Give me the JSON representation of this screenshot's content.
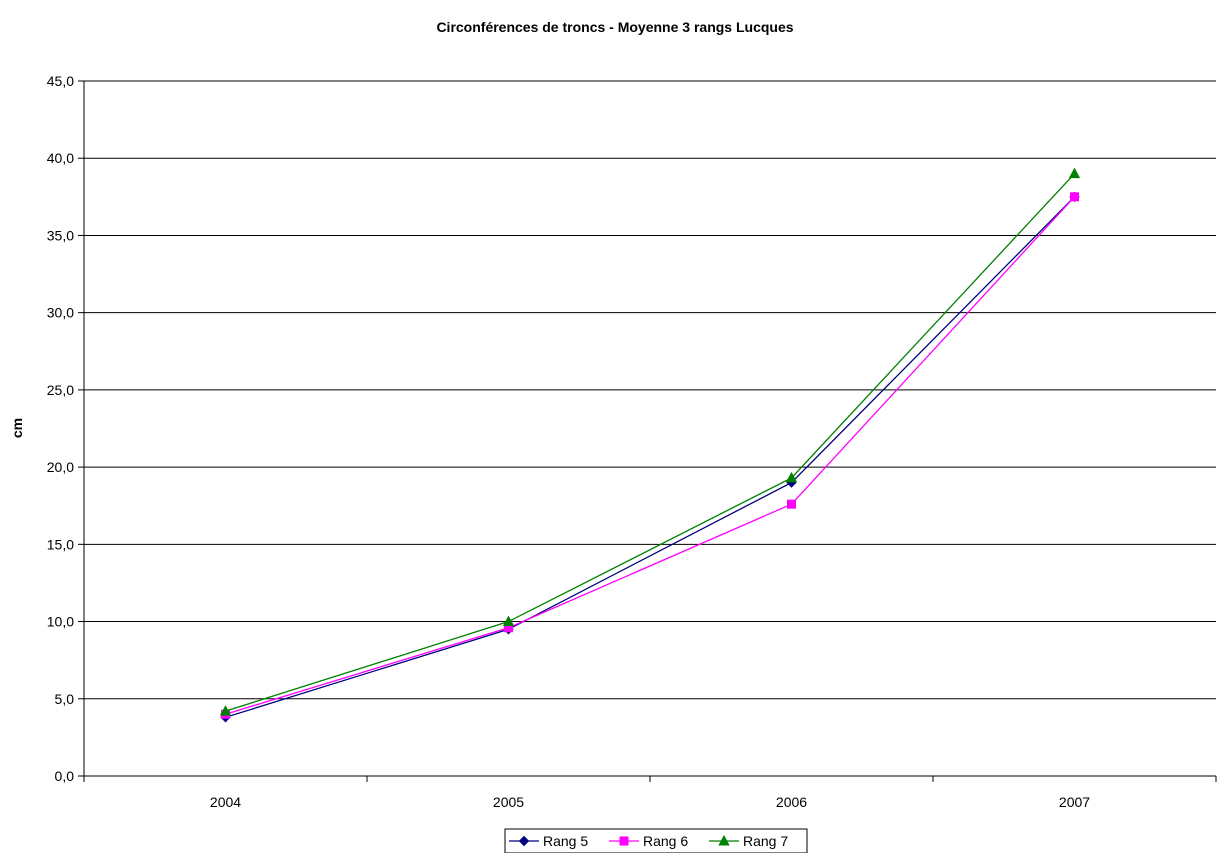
{
  "chart_data": {
    "type": "line",
    "title": "Circonférences de troncs - Moyenne 3 rangs Lucques",
    "xlabel": "",
    "ylabel": "cm",
    "categories": [
      "2004",
      "2005",
      "2006",
      "2007"
    ],
    "ylim": [
      0,
      45
    ],
    "y_ticks": [
      "0,0",
      "5,0",
      "10,0",
      "15,0",
      "20,0",
      "25,0",
      "30,0",
      "35,0",
      "40,0",
      "45,0"
    ],
    "grid": true,
    "legend_position": "bottom",
    "series": [
      {
        "name": "Rang 5",
        "values": [
          3.8,
          9.5,
          19.0,
          37.5
        ],
        "color": "#000080",
        "marker": "diamond"
      },
      {
        "name": "Rang 6",
        "values": [
          4.0,
          9.6,
          17.6,
          37.5
        ],
        "color": "#ff00ff",
        "marker": "square"
      },
      {
        "name": "Rang 7",
        "values": [
          4.2,
          10.0,
          19.3,
          39.0
        ],
        "color": "#008000",
        "marker": "triangle"
      }
    ]
  }
}
